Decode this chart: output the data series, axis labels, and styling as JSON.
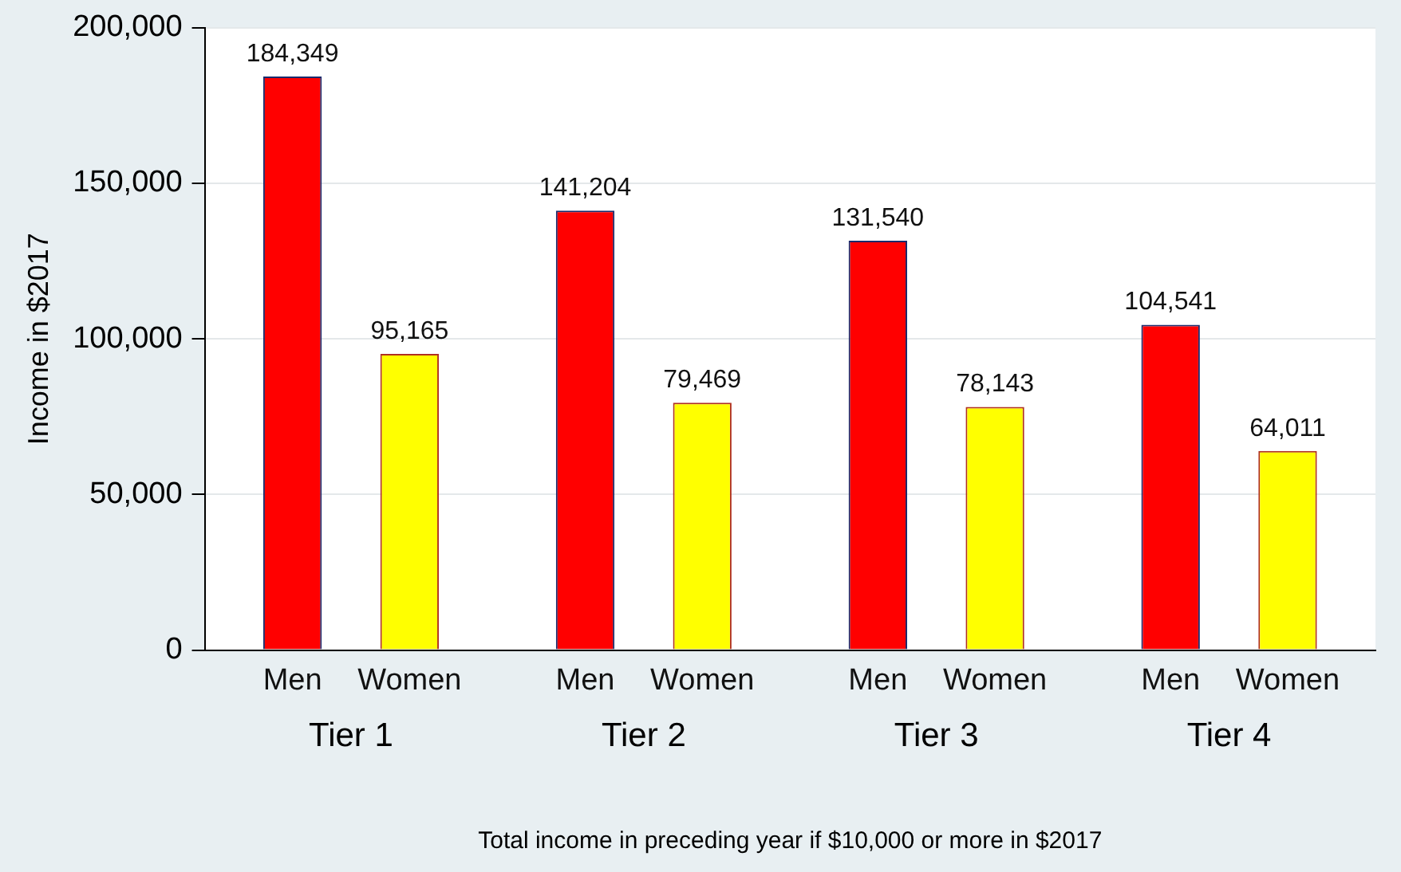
{
  "chart_data": {
    "type": "bar",
    "xlabel": "Total income in preceding year if $10,000 or more in $2017",
    "ylabel": "Income in $2017",
    "categories": [
      "Tier 1",
      "Tier 2",
      "Tier 3",
      "Tier 4"
    ],
    "series": [
      {
        "name": "Men",
        "color": "#ff0000",
        "values": [
          184349,
          141204,
          131540,
          104541
        ],
        "value_labels": [
          "184,349",
          "141,204",
          "131,540",
          "104,541"
        ]
      },
      {
        "name": "Women",
        "color": "#ffff00",
        "values": [
          95165,
          79469,
          78143,
          64011
        ],
        "value_labels": [
          "95,165",
          "79,469",
          "78,143",
          "64,011"
        ]
      }
    ],
    "ylim": [
      0,
      200000
    ],
    "yticks": [
      {
        "value": 0,
        "label": "0"
      },
      {
        "value": 50000,
        "label": "50,000"
      },
      {
        "value": 100000,
        "label": "100,000"
      },
      {
        "value": 150000,
        "label": "150,000"
      },
      {
        "value": 200000,
        "label": "200,000"
      }
    ],
    "grid": "y",
    "legend": false
  }
}
